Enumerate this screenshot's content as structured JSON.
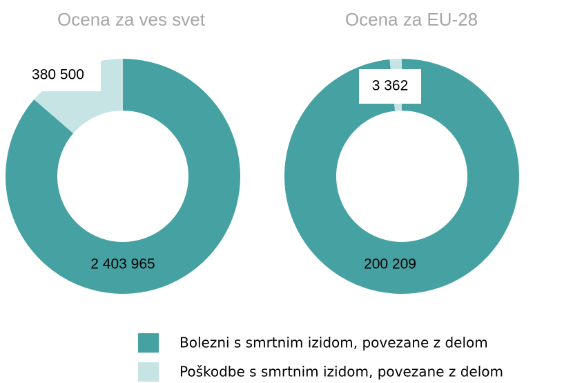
{
  "chart_data": [
    {
      "type": "pie",
      "donut": true,
      "title": "Ocena za ves svet",
      "values": [
        2403965,
        380500
      ],
      "value_labels": [
        "2 403 965",
        "380 500"
      ]
    },
    {
      "type": "pie",
      "donut": true,
      "title": "Ocena za EU-28",
      "values": [
        200209,
        3362
      ],
      "value_labels": [
        "200 209",
        "3 362"
      ]
    }
  ],
  "legend": [
    {
      "name": "Bolezni s smrtnim izidom, povezane z delom",
      "color": "#46a1a2"
    },
    {
      "name": "Poškodbe s smrtnim izidom, povezane z delom",
      "color": "#c7e4e4"
    }
  ]
}
